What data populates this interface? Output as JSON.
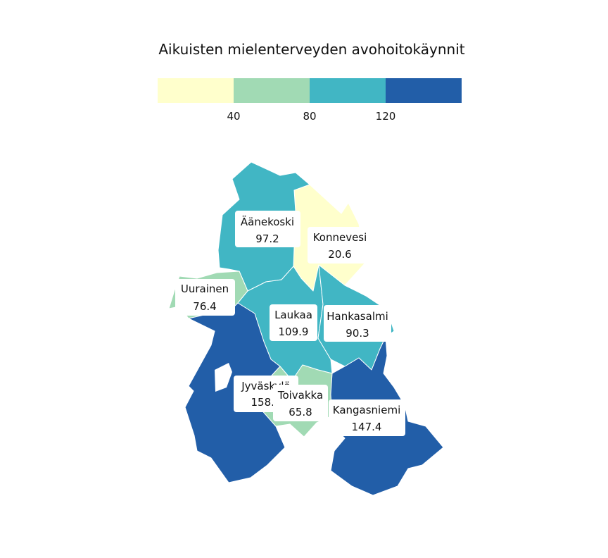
{
  "title": "Aikuisten mielenterveyden avohoitokäynnit",
  "legend": {
    "colors": [
      "#ffffcc",
      "#a1dab4",
      "#41b6c4",
      "#225ea8"
    ],
    "ticks": [
      "40",
      "80",
      "120"
    ]
  },
  "regions": [
    {
      "name": "Äänekoski",
      "value": "97.2"
    },
    {
      "name": "Konnevesi",
      "value": "20.6"
    },
    {
      "name": "Uurainen",
      "value": "76.4"
    },
    {
      "name": "Laukaa",
      "value": "109.9"
    },
    {
      "name": "Hankasalmi",
      "value": "90.3"
    },
    {
      "name": "Jyväskylä",
      "value": "158.3"
    },
    {
      "name": "Toivakka",
      "value": "65.8"
    },
    {
      "name": "Kangasniemi",
      "value": "147.4"
    }
  ]
}
